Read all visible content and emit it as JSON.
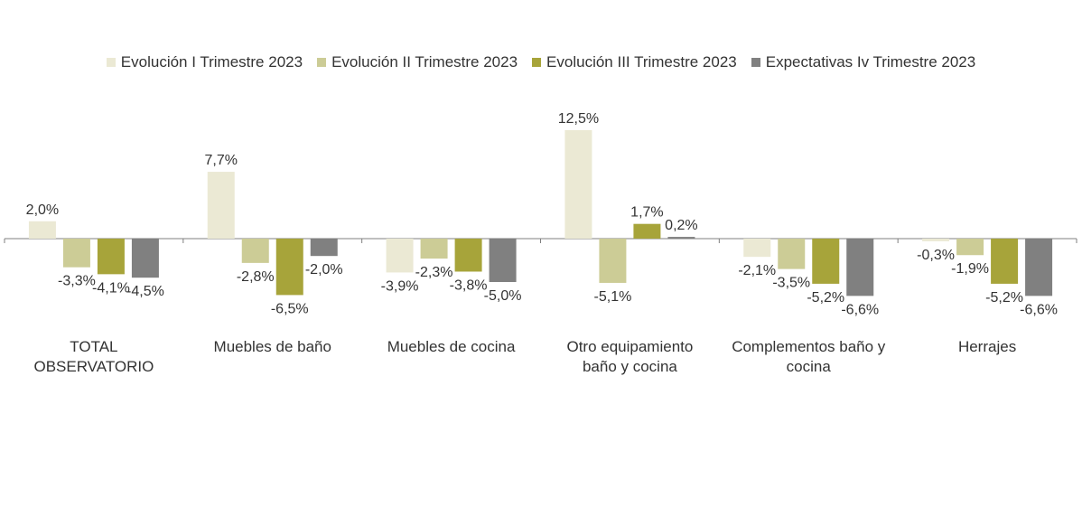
{
  "chart_data": {
    "type": "bar",
    "title": "",
    "xlabel": "",
    "ylabel": "",
    "ylim": [
      -8,
      15
    ],
    "grid": false,
    "legend_position": "top",
    "categories": [
      [
        "TOTAL",
        "OBSERVATORIO"
      ],
      [
        "Muebles de baño"
      ],
      [
        "Muebles de cocina"
      ],
      [
        "Otro equipamiento",
        "baño y cocina"
      ],
      [
        "Complementos baño y",
        "cocina"
      ],
      [
        "Herrajes"
      ]
    ],
    "series": [
      {
        "name": "Evolución I Trimestre 2023",
        "color": "#ebe9d4",
        "values": [
          2.0,
          7.7,
          -3.9,
          12.5,
          -2.1,
          -0.3
        ],
        "labels": [
          "2,0%",
          "7,7%",
          "-3,9%",
          "12,5%",
          "-2,1%",
          "-0,3%"
        ]
      },
      {
        "name": "Evolución II Trimestre 2023",
        "color": "#cccc96",
        "values": [
          -3.3,
          -2.8,
          -2.3,
          -5.1,
          -3.5,
          -1.9
        ],
        "labels": [
          "-3,3%",
          "-2,8%",
          "-2,3%",
          "-5,1%",
          "-3,5%",
          "-1,9%"
        ]
      },
      {
        "name": "Evolución III Trimestre 2023",
        "color": "#a7a43a",
        "values": [
          -4.1,
          -6.5,
          -3.8,
          1.7,
          -5.2,
          -5.2
        ],
        "labels": [
          "-4,1%",
          "-6,5%",
          "-3,8%",
          "1,7%",
          "-5,2%",
          "-5,2%"
        ]
      },
      {
        "name": "Expectativas Iv Trimestre 2023",
        "color": "#808080",
        "values": [
          -4.5,
          -2.0,
          -5.0,
          0.2,
          -6.6,
          -6.6
        ],
        "labels": [
          "-4,5%",
          "-2,0%",
          "-5,0%",
          "0,2%",
          "-6,6%",
          "-6,6%"
        ]
      }
    ]
  }
}
